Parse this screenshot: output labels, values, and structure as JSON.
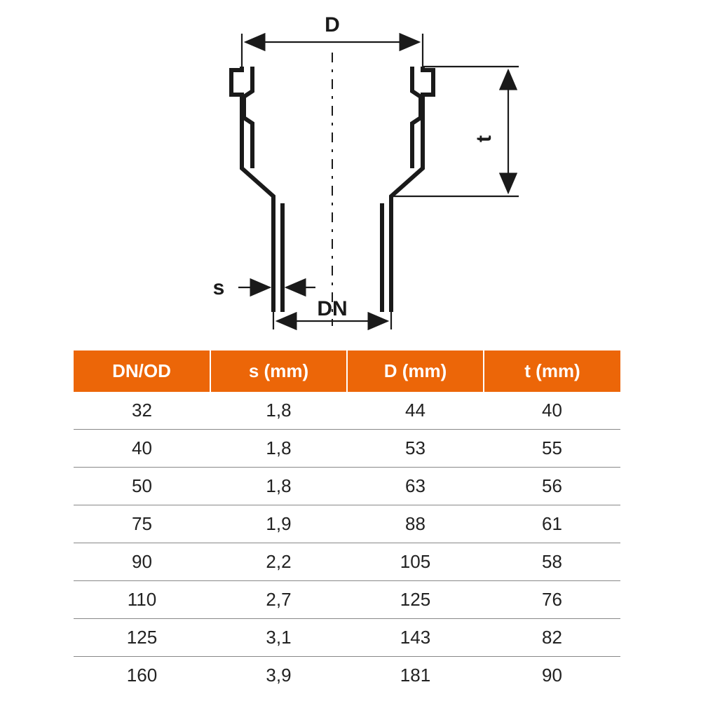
{
  "colors": {
    "header_bg": "#ec6608",
    "header_text": "#ffffff",
    "row_text": "#222222",
    "row_border": "#888888",
    "page_bg": "#ffffff",
    "diagram_stroke": "#1a1a1a"
  },
  "diagram": {
    "labels": {
      "D": "D",
      "t": "t",
      "s": "s",
      "DN": "DN"
    },
    "stroke": "#1a1a1a",
    "outline_width": 6,
    "dim_width": 2.2,
    "dash_pattern": "14 10 4 10",
    "label_fontsize": 30,
    "label_fontweight": 600
  },
  "table": {
    "columns": [
      "DN/OD",
      "s (mm)",
      "D (mm)",
      "t (mm)"
    ],
    "rows": [
      [
        "32",
        "1,8",
        "44",
        "40"
      ],
      [
        "40",
        "1,8",
        "53",
        "55"
      ],
      [
        "50",
        "1,8",
        "63",
        "56"
      ],
      [
        "75",
        "1,9",
        "88",
        "61"
      ],
      [
        "90",
        "2,2",
        "105",
        "58"
      ],
      [
        "110",
        "2,7",
        "125",
        "76"
      ],
      [
        "125",
        "3,1",
        "143",
        "82"
      ],
      [
        "160",
        "3,9",
        "181",
        "90"
      ]
    ],
    "header_fontsize": 26,
    "cell_fontsize": 26
  }
}
